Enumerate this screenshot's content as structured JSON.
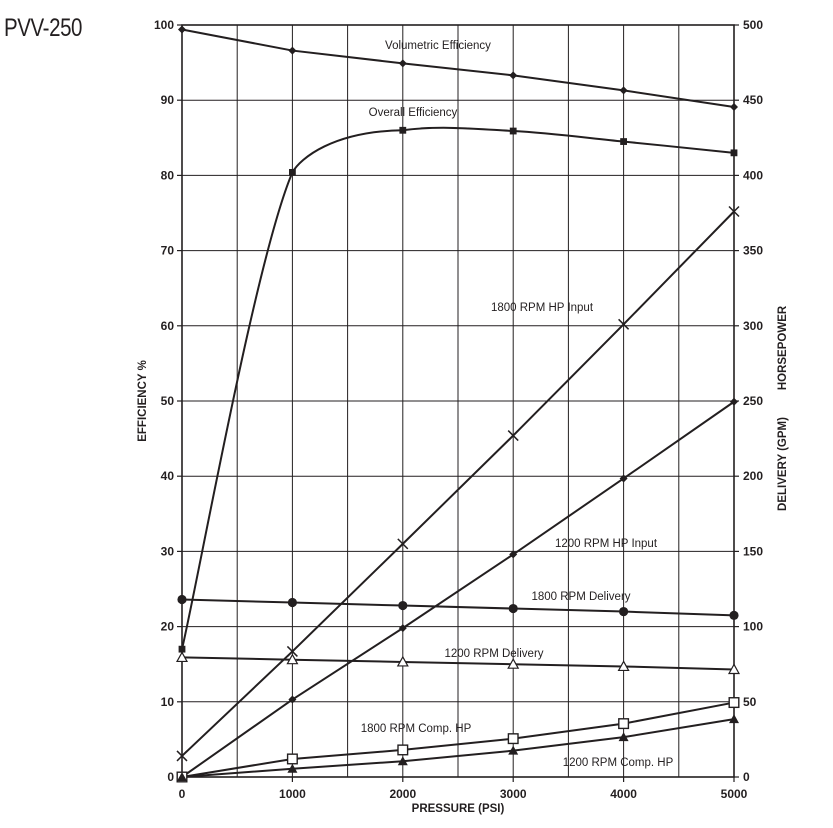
{
  "page": {
    "title": "PVV-250"
  },
  "chart_data": {
    "type": "line",
    "title": "PVV-250",
    "xlabel": "PRESSURE (PSI)",
    "ylabel_left": "EFFICIENCY %",
    "ylabel_right_top": "HORSEPOWER",
    "ylabel_right_bottom": "DELIVERY (GPM)",
    "xlim": [
      0,
      5000
    ],
    "ylim_left": [
      0,
      100
    ],
    "ylim_right": [
      0,
      500
    ],
    "grid": true,
    "x_ticks": [
      0,
      1000,
      2000,
      3000,
      4000,
      5000
    ],
    "y_ticks_left": [
      0,
      10,
      20,
      30,
      40,
      50,
      60,
      70,
      80,
      90,
      100
    ],
    "y_ticks_right": [
      0,
      50,
      100,
      150,
      200,
      250,
      300,
      350,
      400,
      450,
      500
    ],
    "series": [
      {
        "name": "Volumetric Efficiency",
        "axis": "left",
        "marker": "diamond",
        "x": [
          0,
          1000,
          2000,
          3000,
          4000,
          5000
        ],
        "values": [
          99.4,
          96.6,
          94.9,
          93.3,
          91.3,
          89.1
        ]
      },
      {
        "name": "Overall Efficiency",
        "axis": "left",
        "marker": "square",
        "x": [
          0,
          1000,
          2000,
          3000,
          4000,
          5000
        ],
        "values": [
          17,
          80.4,
          86,
          85.9,
          84.5,
          83
        ]
      },
      {
        "name": "1800 RPM HP Input",
        "axis": "right",
        "marker": "x",
        "x": [
          0,
          1000,
          2000,
          3000,
          4000,
          5000
        ],
        "values": [
          14,
          83.5,
          155,
          227,
          301,
          376
        ]
      },
      {
        "name": "1200 RPM HP Input",
        "axis": "right",
        "marker": "diamond",
        "x": [
          0,
          1000,
          2000,
          3000,
          4000,
          5000
        ],
        "values": [
          0,
          51.5,
          99,
          148,
          198.5,
          249.5
        ]
      },
      {
        "name": "1800 RPM Delivery",
        "axis": "right",
        "marker": "circle",
        "x": [
          0,
          1000,
          2000,
          3000,
          4000,
          5000
        ],
        "values": [
          118,
          116,
          114,
          112,
          110,
          107.5
        ]
      },
      {
        "name": "1200 RPM Delivery",
        "axis": "right",
        "marker": "triangle-open",
        "x": [
          0,
          1000,
          2000,
          3000,
          4000,
          5000
        ],
        "values": [
          79.5,
          78,
          76.5,
          75,
          73.5,
          71.5
        ]
      },
      {
        "name": "1800 RPM Comp. HP",
        "axis": "right",
        "marker": "square-open",
        "x": [
          0,
          1000,
          2000,
          3000,
          4000,
          5000
        ],
        "values": [
          0,
          12,
          18,
          25.5,
          35.5,
          49.5
        ]
      },
      {
        "name": "1200 RPM Comp. HP",
        "axis": "right",
        "marker": "triangle",
        "x": [
          0,
          1000,
          2000,
          3000,
          4000,
          5000
        ],
        "values": [
          0,
          5.5,
          10.5,
          17.5,
          26.5,
          38.5
        ]
      }
    ],
    "annotations": [
      {
        "text": "Volumetric Efficiency",
        "series": "Volumetric Efficiency"
      },
      {
        "text": "Overall Efficiency",
        "series": "Overall Efficiency"
      },
      {
        "text": "1800 RPM HP Input",
        "series": "1800 RPM HP Input"
      },
      {
        "text": "1200 RPM HP Input",
        "series": "1200 RPM HP Input"
      },
      {
        "text": "1800 RPM Delivery",
        "series": "1800 RPM Delivery"
      },
      {
        "text": "1200 RPM Delivery",
        "series": "1200 RPM Delivery"
      },
      {
        "text": "1800 RPM Comp. HP",
        "series": "1800 RPM Comp. HP"
      },
      {
        "text": "1200 RPM Comp. HP",
        "series": "1200 RPM Comp. HP"
      }
    ],
    "colors": {
      "line": "#231f20",
      "grid": "#231f20",
      "background": "#ffffff"
    }
  }
}
